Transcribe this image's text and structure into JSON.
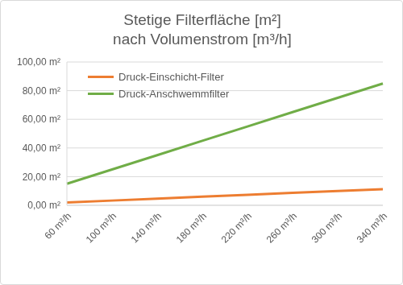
{
  "chart_data": {
    "type": "line",
    "title": "Stetige Filterfläche [m²]\nnach Volumenstrom [m³/h]",
    "categories": [
      "60 m³/h",
      "100 m³/h",
      "140 m³/h",
      "180 m³/h",
      "220 m³/h",
      "260 m³/h",
      "300 m³/h",
      "340 m³/h"
    ],
    "series": [
      {
        "name": "Druck-Einschicht-Filter",
        "color": "#ED7D31",
        "values": [
          2,
          3.3,
          4.7,
          6,
          7.3,
          8.7,
          10,
          11.3
        ]
      },
      {
        "name": "Druck-Anschwemmfilter",
        "color": "#70AD47",
        "values": [
          15,
          25,
          35,
          45,
          55,
          65,
          75,
          85
        ]
      }
    ],
    "ylim": [
      0,
      100
    ],
    "yticks": [
      {
        "value": 0,
        "label": "0,00 m²"
      },
      {
        "value": 20,
        "label": "20,00 m²"
      },
      {
        "value": 40,
        "label": "40,00 m²"
      },
      {
        "value": 60,
        "label": "60,00 m²"
      },
      {
        "value": 80,
        "label": "80,00 m²"
      },
      {
        "value": 100,
        "label": "100,00 m²"
      }
    ],
    "grid": true,
    "legend": "upper left"
  }
}
